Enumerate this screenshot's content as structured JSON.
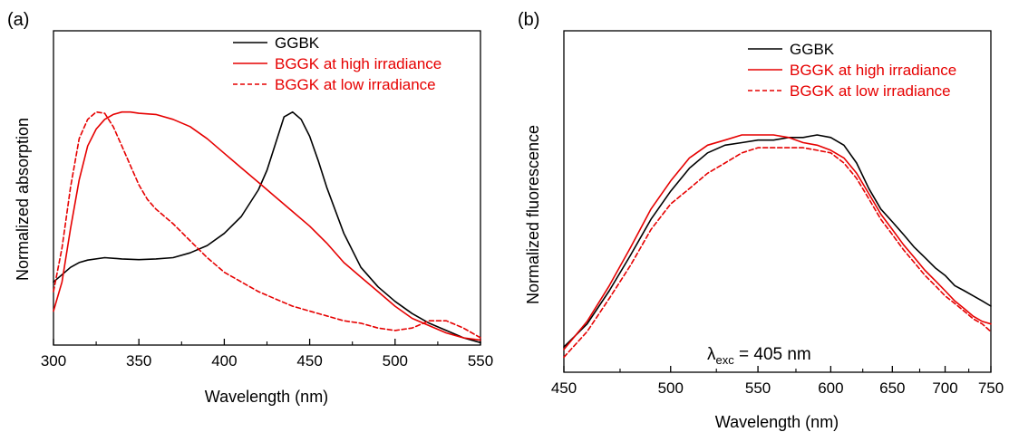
{
  "chart_data": [
    {
      "type": "line",
      "panel_label": "(a)",
      "xlabel": "Wavelength (nm)",
      "ylabel": "Normalized absorption",
      "xlim": [
        300,
        550
      ],
      "ylim": [
        0,
        1.0
      ],
      "x_scale": "linear",
      "xticks": [
        300,
        350,
        400,
        450,
        500,
        550
      ],
      "xtick_labels": [
        "300",
        "350",
        "400",
        "450",
        "500",
        "550"
      ],
      "legend_position": "top-right",
      "grid": false,
      "series": [
        {
          "name": "GGBK",
          "color": "#000000",
          "dash": "solid",
          "x": [
            300,
            305,
            310,
            315,
            320,
            330,
            340,
            350,
            360,
            370,
            380,
            390,
            400,
            410,
            420,
            425,
            430,
            435,
            440,
            445,
            450,
            455,
            460,
            470,
            480,
            490,
            500,
            510,
            520,
            530,
            540,
            550
          ],
          "y": [
            0.26,
            0.29,
            0.32,
            0.34,
            0.35,
            0.36,
            0.355,
            0.352,
            0.355,
            0.36,
            0.38,
            0.41,
            0.46,
            0.53,
            0.64,
            0.72,
            0.83,
            0.94,
            0.96,
            0.93,
            0.86,
            0.76,
            0.65,
            0.46,
            0.32,
            0.24,
            0.18,
            0.13,
            0.09,
            0.06,
            0.03,
            0.01
          ]
        },
        {
          "name": "BGGK at high irradiance",
          "color": "#e60000",
          "dash": "solid",
          "x": [
            300,
            305,
            310,
            315,
            320,
            325,
            330,
            335,
            340,
            345,
            350,
            360,
            370,
            380,
            390,
            400,
            410,
            420,
            430,
            440,
            450,
            460,
            470,
            480,
            490,
            500,
            510,
            520,
            530,
            540,
            550
          ],
          "y": [
            0.14,
            0.26,
            0.48,
            0.68,
            0.82,
            0.89,
            0.93,
            0.95,
            0.96,
            0.96,
            0.955,
            0.95,
            0.93,
            0.9,
            0.85,
            0.79,
            0.73,
            0.67,
            0.61,
            0.55,
            0.49,
            0.42,
            0.34,
            0.28,
            0.22,
            0.16,
            0.11,
            0.08,
            0.05,
            0.03,
            0.02
          ]
        },
        {
          "name": "BGGK at low irradiance",
          "color": "#e60000",
          "dash": "dashed",
          "x": [
            300,
            305,
            310,
            315,
            320,
            325,
            330,
            335,
            340,
            345,
            350,
            355,
            360,
            370,
            380,
            390,
            400,
            410,
            420,
            430,
            440,
            450,
            460,
            470,
            480,
            490,
            500,
            510,
            520,
            530,
            540,
            550
          ],
          "y": [
            0.22,
            0.4,
            0.65,
            0.85,
            0.93,
            0.96,
            0.955,
            0.9,
            0.82,
            0.74,
            0.66,
            0.6,
            0.56,
            0.5,
            0.43,
            0.36,
            0.3,
            0.26,
            0.22,
            0.19,
            0.16,
            0.14,
            0.12,
            0.1,
            0.09,
            0.07,
            0.06,
            0.07,
            0.1,
            0.1,
            0.07,
            0.03
          ]
        }
      ]
    },
    {
      "type": "line",
      "panel_label": "(b)",
      "xlabel": "Wavelength (nm)",
      "ylabel": "Normalized fluorescence",
      "xlim": [
        450,
        750
      ],
      "ylim": [
        0,
        1.0
      ],
      "x_scale": "reciprocal",
      "xticks": [
        450,
        500,
        550,
        600,
        650,
        700,
        750
      ],
      "xtick_labels": [
        "450",
        "500",
        "550",
        "600",
        "650",
        "700",
        "750"
      ],
      "legend_position": "top-right",
      "grid": false,
      "annotation": {
        "symbol": "λ",
        "subscript": "exc",
        "rest": " = 405 nm"
      },
      "series": [
        {
          "name": "GGBK",
          "color": "#000000",
          "dash": "solid",
          "x": [
            450,
            460,
            470,
            480,
            490,
            500,
            510,
            520,
            530,
            540,
            550,
            560,
            570,
            580,
            590,
            600,
            610,
            620,
            630,
            640,
            650,
            660,
            670,
            680,
            690,
            700,
            710,
            720,
            730,
            740,
            750
          ],
          "y": [
            0.06,
            0.15,
            0.28,
            0.42,
            0.56,
            0.67,
            0.76,
            0.82,
            0.85,
            0.86,
            0.87,
            0.87,
            0.88,
            0.88,
            0.89,
            0.88,
            0.85,
            0.78,
            0.68,
            0.6,
            0.55,
            0.5,
            0.45,
            0.41,
            0.37,
            0.34,
            0.3,
            0.28,
            0.26,
            0.24,
            0.22
          ]
        },
        {
          "name": "BGGK at high irradiance",
          "color": "#e60000",
          "dash": "solid",
          "x": [
            450,
            460,
            470,
            480,
            490,
            500,
            510,
            520,
            530,
            540,
            550,
            560,
            570,
            580,
            590,
            600,
            610,
            620,
            630,
            640,
            650,
            660,
            670,
            680,
            690,
            700,
            710,
            720,
            730,
            740,
            750
          ],
          "y": [
            0.05,
            0.16,
            0.3,
            0.45,
            0.6,
            0.71,
            0.8,
            0.85,
            0.87,
            0.89,
            0.89,
            0.89,
            0.88,
            0.86,
            0.85,
            0.83,
            0.8,
            0.74,
            0.66,
            0.58,
            0.52,
            0.46,
            0.41,
            0.36,
            0.32,
            0.28,
            0.24,
            0.21,
            0.18,
            0.16,
            0.15
          ]
        },
        {
          "name": "BGGK at low irradiance",
          "color": "#e60000",
          "dash": "dashed",
          "x": [
            450,
            460,
            470,
            480,
            490,
            500,
            510,
            520,
            530,
            540,
            550,
            560,
            570,
            580,
            590,
            600,
            610,
            620,
            630,
            640,
            650,
            660,
            670,
            680,
            690,
            700,
            710,
            720,
            730,
            740,
            750
          ],
          "y": [
            0.02,
            0.12,
            0.25,
            0.38,
            0.52,
            0.62,
            0.68,
            0.74,
            0.78,
            0.82,
            0.84,
            0.84,
            0.84,
            0.84,
            0.83,
            0.82,
            0.78,
            0.72,
            0.64,
            0.56,
            0.5,
            0.44,
            0.39,
            0.34,
            0.3,
            0.26,
            0.23,
            0.2,
            0.17,
            0.15,
            0.12
          ]
        }
      ]
    }
  ]
}
